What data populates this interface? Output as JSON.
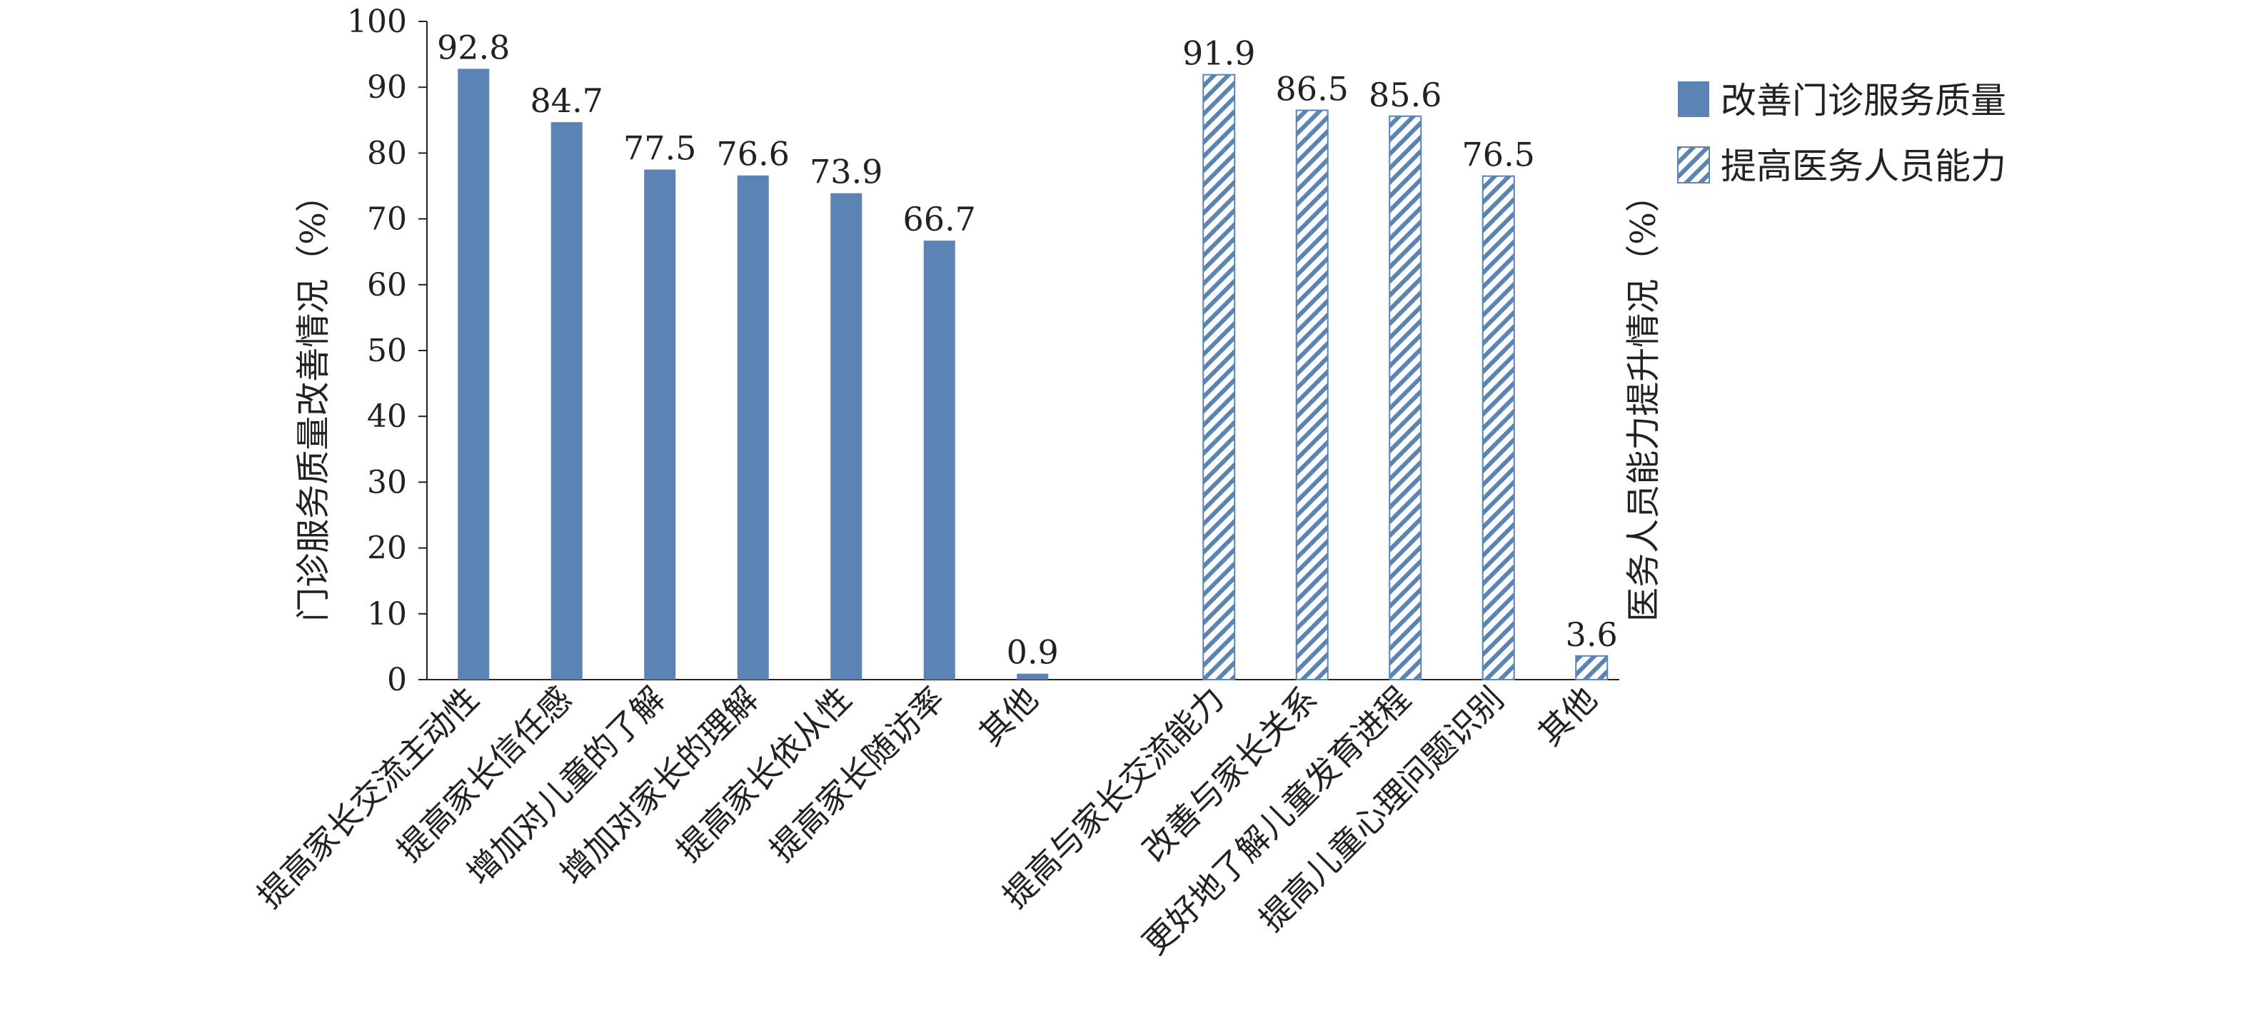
{
  "chart_data": {
    "type": "bar",
    "yticks": [
      "0",
      "10",
      "20",
      "30",
      "40",
      "50",
      "60",
      "70",
      "80",
      "90",
      "100"
    ],
    "ylim": [
      0,
      100
    ],
    "ylabel_left": "门诊服务质量改善情况（%）",
    "ylabel_right": "医务人员能力提升情况（%）",
    "legend_position": "top-right",
    "series": [
      {
        "name": "改善门诊服务质量",
        "color": "#5b84b5",
        "fill": "solid",
        "categories": [
          "提高家长交流主动性",
          "提高家长信任感",
          "增加对儿童的了解",
          "增加对家长的理解",
          "提高家长依从性",
          "提高家长随访率",
          "其他"
        ],
        "values": [
          92.8,
          84.7,
          77.5,
          76.6,
          73.9,
          66.7,
          0.9
        ],
        "labels": [
          "92.8",
          "84.7",
          "77.5",
          "76.6",
          "73.9",
          "66.7",
          "0.9"
        ]
      },
      {
        "name": "提高医务人员能力",
        "color": "#5b84b5",
        "fill": "hatched",
        "categories": [
          "提高与家长交流能力",
          "改善与家长关系",
          "更好地了解儿童发育进程",
          "提高儿童心理问题识别",
          "其他"
        ],
        "values": [
          91.9,
          86.5,
          85.6,
          76.5,
          3.6
        ],
        "labels": [
          "91.9",
          "86.5",
          "85.6",
          "76.5",
          "3.6"
        ]
      }
    ]
  }
}
